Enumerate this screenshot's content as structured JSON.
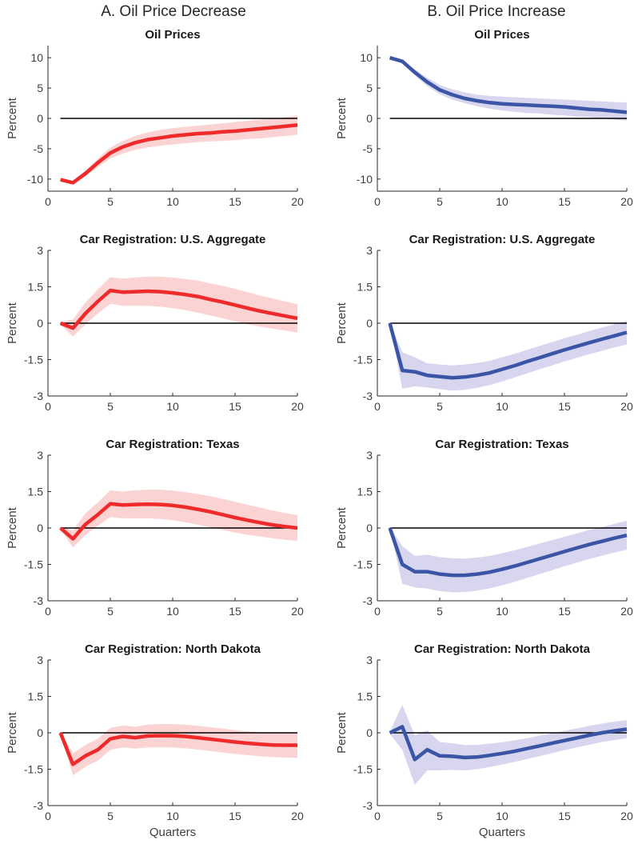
{
  "column_titles": [
    "A. Oil Price Decrease",
    "B. Oil Price Increase"
  ],
  "colors": {
    "decrease_line": "#ee2a2a",
    "decrease_band": "#fbd3d3",
    "increase_line": "#3b55a6",
    "increase_band": "#d8d6ee",
    "zero_line": "#000000",
    "axis": "#262626"
  },
  "chart_data": [
    {
      "type": "line",
      "panel": "A-1",
      "title": "Oil Prices",
      "xlabel": "",
      "ylabel": "Percent",
      "xlim": [
        0,
        20
      ],
      "ylim": [
        -12,
        12
      ],
      "xticks": [
        0,
        5,
        10,
        15,
        20
      ],
      "yticks": [
        10,
        5,
        0,
        -5,
        -10
      ],
      "ytick_labels": [
        "10",
        "5",
        "0",
        "-5",
        "-10"
      ],
      "x": [
        1,
        2,
        3,
        4,
        5,
        6,
        7,
        8,
        9,
        10,
        11,
        12,
        13,
        14,
        15,
        16,
        17,
        18,
        19,
        20
      ],
      "values": [
        -10.1,
        -10.6,
        -9.1,
        -7.3,
        -5.7,
        -4.7,
        -4.0,
        -3.5,
        -3.2,
        -2.9,
        -2.7,
        -2.5,
        -2.4,
        -2.2,
        -2.1,
        -1.9,
        -1.7,
        -1.5,
        -1.3,
        -1.1
      ],
      "lower": [
        -10.2,
        -10.8,
        -9.5,
        -8.0,
        -6.6,
        -5.8,
        -5.2,
        -4.8,
        -4.5,
        -4.3,
        -4.1,
        -3.9,
        -3.8,
        -3.7,
        -3.6,
        -3.4,
        -3.3,
        -3.1,
        -2.9,
        -2.7
      ],
      "upper": [
        -10.0,
        -10.3,
        -8.6,
        -6.6,
        -4.8,
        -3.7,
        -2.9,
        -2.3,
        -1.9,
        -1.6,
        -1.4,
        -1.2,
        -1.0,
        -0.8,
        -0.6,
        -0.4,
        -0.2,
        0.0,
        0.2,
        0.5
      ]
    },
    {
      "type": "line",
      "panel": "B-1",
      "title": "Oil Prices",
      "xlabel": "",
      "ylabel": "Percent",
      "xlim": [
        0,
        20
      ],
      "ylim": [
        -12,
        12
      ],
      "xticks": [
        0,
        5,
        10,
        15,
        20
      ],
      "yticks": [
        10,
        5,
        0,
        -5,
        -10
      ],
      "ytick_labels": [
        "10",
        "5",
        "0",
        "-5",
        "-10"
      ],
      "x": [
        1,
        2,
        3,
        4,
        5,
        6,
        7,
        8,
        9,
        10,
        11,
        12,
        13,
        14,
        15,
        16,
        17,
        18,
        19,
        20
      ],
      "values": [
        10.0,
        9.4,
        7.6,
        6.0,
        4.7,
        3.9,
        3.3,
        2.9,
        2.6,
        2.4,
        2.3,
        2.2,
        2.1,
        2.0,
        1.9,
        1.7,
        1.5,
        1.4,
        1.2,
        1.0
      ],
      "lower": [
        9.9,
        9.1,
        7.1,
        5.3,
        4.0,
        3.1,
        2.5,
        2.0,
        1.6,
        1.3,
        1.1,
        0.9,
        0.8,
        0.6,
        0.5,
        0.3,
        0.2,
        0.0,
        -0.2,
        -0.4
      ],
      "upper": [
        10.1,
        9.7,
        8.1,
        6.7,
        5.5,
        4.8,
        4.3,
        3.9,
        3.7,
        3.6,
        3.5,
        3.4,
        3.3,
        3.2,
        3.1,
        3.0,
        2.9,
        2.8,
        2.7,
        2.6
      ]
    },
    {
      "type": "line",
      "panel": "A-2",
      "title": "Car Registration: U.S. Aggregate",
      "xlabel": "",
      "ylabel": "Percent",
      "xlim": [
        0,
        20
      ],
      "ylim": [
        -3,
        3
      ],
      "xticks": [
        0,
        5,
        10,
        15,
        20
      ],
      "yticks": [
        3,
        1.5,
        0,
        -1.5,
        -3
      ],
      "ytick_labels": [
        "3",
        "1.5",
        "0",
        "-1.5",
        "-3"
      ],
      "x": [
        1,
        2,
        3,
        4,
        5,
        6,
        7,
        8,
        9,
        10,
        11,
        12,
        13,
        14,
        15,
        16,
        17,
        18,
        19,
        20
      ],
      "values": [
        0.0,
        -0.2,
        0.4,
        0.9,
        1.35,
        1.28,
        1.3,
        1.32,
        1.3,
        1.25,
        1.18,
        1.1,
        0.98,
        0.87,
        0.75,
        0.62,
        0.5,
        0.4,
        0.3,
        0.2
      ],
      "lower": [
        -0.05,
        -0.55,
        -0.05,
        0.4,
        0.8,
        0.72,
        0.72,
        0.72,
        0.68,
        0.62,
        0.54,
        0.44,
        0.32,
        0.2,
        0.08,
        -0.04,
        -0.14,
        -0.22,
        -0.3,
        -0.38
      ],
      "upper": [
        0.05,
        0.15,
        0.85,
        1.4,
        1.9,
        1.84,
        1.88,
        1.92,
        1.92,
        1.88,
        1.82,
        1.76,
        1.64,
        1.54,
        1.42,
        1.28,
        1.14,
        1.02,
        0.9,
        0.78
      ]
    },
    {
      "type": "line",
      "panel": "B-2",
      "title": "Car Registration: U.S. Aggregate",
      "xlabel": "",
      "ylabel": "Percent",
      "xlim": [
        0,
        20
      ],
      "ylim": [
        -3,
        3
      ],
      "xticks": [
        0,
        5,
        10,
        15,
        20
      ],
      "yticks": [
        3,
        1.5,
        0,
        -1.5,
        -3
      ],
      "ytick_labels": [
        "3",
        "1.5",
        "0",
        "-1.5",
        "-3"
      ],
      "x": [
        1,
        2,
        3,
        4,
        5,
        6,
        7,
        8,
        9,
        10,
        11,
        12,
        13,
        14,
        15,
        16,
        17,
        18,
        19,
        20
      ],
      "values": [
        0.0,
        -1.95,
        -2.0,
        -2.15,
        -2.2,
        -2.25,
        -2.22,
        -2.15,
        -2.05,
        -1.9,
        -1.75,
        -1.58,
        -1.42,
        -1.26,
        -1.1,
        -0.95,
        -0.8,
        -0.66,
        -0.52,
        -0.38
      ],
      "lower": [
        -0.05,
        -2.7,
        -2.6,
        -2.65,
        -2.72,
        -2.78,
        -2.75,
        -2.66,
        -2.55,
        -2.4,
        -2.24,
        -2.07,
        -1.9,
        -1.74,
        -1.58,
        -1.42,
        -1.28,
        -1.14,
        -1.0,
        -0.88
      ],
      "upper": [
        0.05,
        -1.2,
        -1.4,
        -1.65,
        -1.7,
        -1.74,
        -1.7,
        -1.64,
        -1.55,
        -1.4,
        -1.26,
        -1.1,
        -0.94,
        -0.78,
        -0.62,
        -0.48,
        -0.32,
        -0.18,
        -0.04,
        0.1
      ]
    },
    {
      "type": "line",
      "panel": "A-3",
      "title": "Car Registration: Texas",
      "xlabel": "",
      "ylabel": "Percent",
      "xlim": [
        0,
        20
      ],
      "ylim": [
        -3,
        3
      ],
      "xticks": [
        0,
        5,
        10,
        15,
        20
      ],
      "yticks": [
        3,
        1.5,
        0,
        -1.5,
        -3
      ],
      "ytick_labels": [
        "3",
        "1.5",
        "0",
        "-1.5",
        "-3"
      ],
      "x": [
        1,
        2,
        3,
        4,
        5,
        6,
        7,
        8,
        9,
        10,
        11,
        12,
        13,
        14,
        15,
        16,
        17,
        18,
        19,
        20
      ],
      "values": [
        0.0,
        -0.45,
        0.15,
        0.55,
        1.0,
        0.95,
        0.97,
        0.98,
        0.97,
        0.93,
        0.86,
        0.77,
        0.67,
        0.55,
        0.43,
        0.32,
        0.22,
        0.13,
        0.06,
        0.0
      ],
      "lower": [
        -0.05,
        -0.8,
        -0.3,
        0.1,
        0.45,
        0.4,
        0.4,
        0.4,
        0.37,
        0.32,
        0.24,
        0.14,
        0.03,
        -0.08,
        -0.19,
        -0.28,
        -0.35,
        -0.42,
        -0.48,
        -0.53
      ],
      "upper": [
        0.05,
        -0.1,
        0.6,
        1.05,
        1.55,
        1.5,
        1.55,
        1.58,
        1.58,
        1.54,
        1.48,
        1.4,
        1.31,
        1.2,
        1.08,
        0.96,
        0.84,
        0.72,
        0.62,
        0.53
      ]
    },
    {
      "type": "line",
      "panel": "B-3",
      "title": "Car Registration: Texas",
      "xlabel": "",
      "ylabel": "Percent",
      "xlim": [
        0,
        20
      ],
      "ylim": [
        -3,
        3
      ],
      "xticks": [
        0,
        5,
        10,
        15,
        20
      ],
      "yticks": [
        3,
        1.5,
        0,
        -1.5,
        -3
      ],
      "ytick_labels": [
        "3",
        "1.5",
        "0",
        "-1.5",
        "-3"
      ],
      "x": [
        1,
        2,
        3,
        4,
        5,
        6,
        7,
        8,
        9,
        10,
        11,
        12,
        13,
        14,
        15,
        16,
        17,
        18,
        19,
        20
      ],
      "values": [
        0.0,
        -1.5,
        -1.8,
        -1.8,
        -1.9,
        -1.95,
        -1.95,
        -1.9,
        -1.82,
        -1.7,
        -1.57,
        -1.42,
        -1.27,
        -1.12,
        -0.97,
        -0.82,
        -0.68,
        -0.55,
        -0.42,
        -0.3
      ],
      "lower": [
        -0.05,
        -2.3,
        -2.45,
        -2.5,
        -2.6,
        -2.65,
        -2.64,
        -2.58,
        -2.49,
        -2.36,
        -2.22,
        -2.06,
        -1.9,
        -1.74,
        -1.58,
        -1.42,
        -1.28,
        -1.14,
        -1.01,
        -0.9
      ],
      "upper": [
        0.05,
        -0.75,
        -1.15,
        -1.1,
        -1.2,
        -1.25,
        -1.26,
        -1.22,
        -1.15,
        -1.04,
        -0.92,
        -0.78,
        -0.64,
        -0.5,
        -0.36,
        -0.22,
        -0.08,
        0.04,
        0.17,
        0.3
      ]
    },
    {
      "type": "line",
      "panel": "A-4",
      "title": "Car Registration: North Dakota",
      "xlabel": "Quarters",
      "ylabel": "Percent",
      "xlim": [
        0,
        20
      ],
      "ylim": [
        -3,
        3
      ],
      "xticks": [
        0,
        5,
        10,
        15,
        20
      ],
      "yticks": [
        3,
        1.5,
        0,
        -1.5,
        -3
      ],
      "ytick_labels": [
        "3",
        "1.5",
        "0",
        "-1.5",
        "-3"
      ],
      "x": [
        1,
        2,
        3,
        4,
        5,
        6,
        7,
        8,
        9,
        10,
        11,
        12,
        13,
        14,
        15,
        16,
        17,
        18,
        19,
        20
      ],
      "values": [
        0.0,
        -1.3,
        -0.95,
        -0.7,
        -0.25,
        -0.15,
        -0.2,
        -0.13,
        -0.12,
        -0.12,
        -0.15,
        -0.2,
        -0.26,
        -0.32,
        -0.38,
        -0.43,
        -0.47,
        -0.5,
        -0.51,
        -0.51
      ],
      "lower": [
        -0.05,
        -1.75,
        -1.4,
        -1.15,
        -0.7,
        -0.6,
        -0.65,
        -0.6,
        -0.6,
        -0.6,
        -0.64,
        -0.69,
        -0.75,
        -0.81,
        -0.87,
        -0.92,
        -0.97,
        -1.0,
        -1.02,
        -1.03
      ],
      "upper": [
        0.05,
        -0.85,
        -0.5,
        -0.25,
        0.2,
        0.3,
        0.25,
        0.34,
        0.36,
        0.36,
        0.34,
        0.29,
        0.23,
        0.17,
        0.11,
        0.06,
        0.03,
        0.0,
        0.0,
        0.0
      ]
    },
    {
      "type": "line",
      "panel": "B-4",
      "title": "Car Registration: North Dakota",
      "xlabel": "Quarters",
      "ylabel": "Percent",
      "xlim": [
        0,
        20
      ],
      "ylim": [
        -3,
        3
      ],
      "xticks": [
        0,
        5,
        10,
        15,
        20
      ],
      "yticks": [
        3,
        1.5,
        0,
        -1.5,
        -3
      ],
      "ytick_labels": [
        "3",
        "1.5",
        "0",
        "-1.5",
        "-3"
      ],
      "x": [
        1,
        2,
        3,
        4,
        5,
        6,
        7,
        8,
        9,
        10,
        11,
        12,
        13,
        14,
        15,
        16,
        17,
        18,
        19,
        20
      ],
      "values": [
        0.0,
        0.25,
        -1.1,
        -0.7,
        -0.95,
        -0.97,
        -1.02,
        -1.0,
        -0.93,
        -0.85,
        -0.76,
        -0.65,
        -0.54,
        -0.43,
        -0.32,
        -0.21,
        -0.1,
        0.0,
        0.08,
        0.15
      ],
      "lower": [
        -0.05,
        -0.7,
        -2.15,
        -1.55,
        -1.55,
        -1.53,
        -1.55,
        -1.5,
        -1.41,
        -1.31,
        -1.2,
        -1.08,
        -0.96,
        -0.84,
        -0.72,
        -0.6,
        -0.49,
        -0.38,
        -0.3,
        -0.22
      ],
      "upper": [
        0.05,
        1.15,
        -0.1,
        0.1,
        -0.38,
        -0.43,
        -0.5,
        -0.5,
        -0.45,
        -0.39,
        -0.31,
        -0.22,
        -0.12,
        -0.02,
        0.08,
        0.18,
        0.29,
        0.38,
        0.46,
        0.52
      ]
    }
  ]
}
